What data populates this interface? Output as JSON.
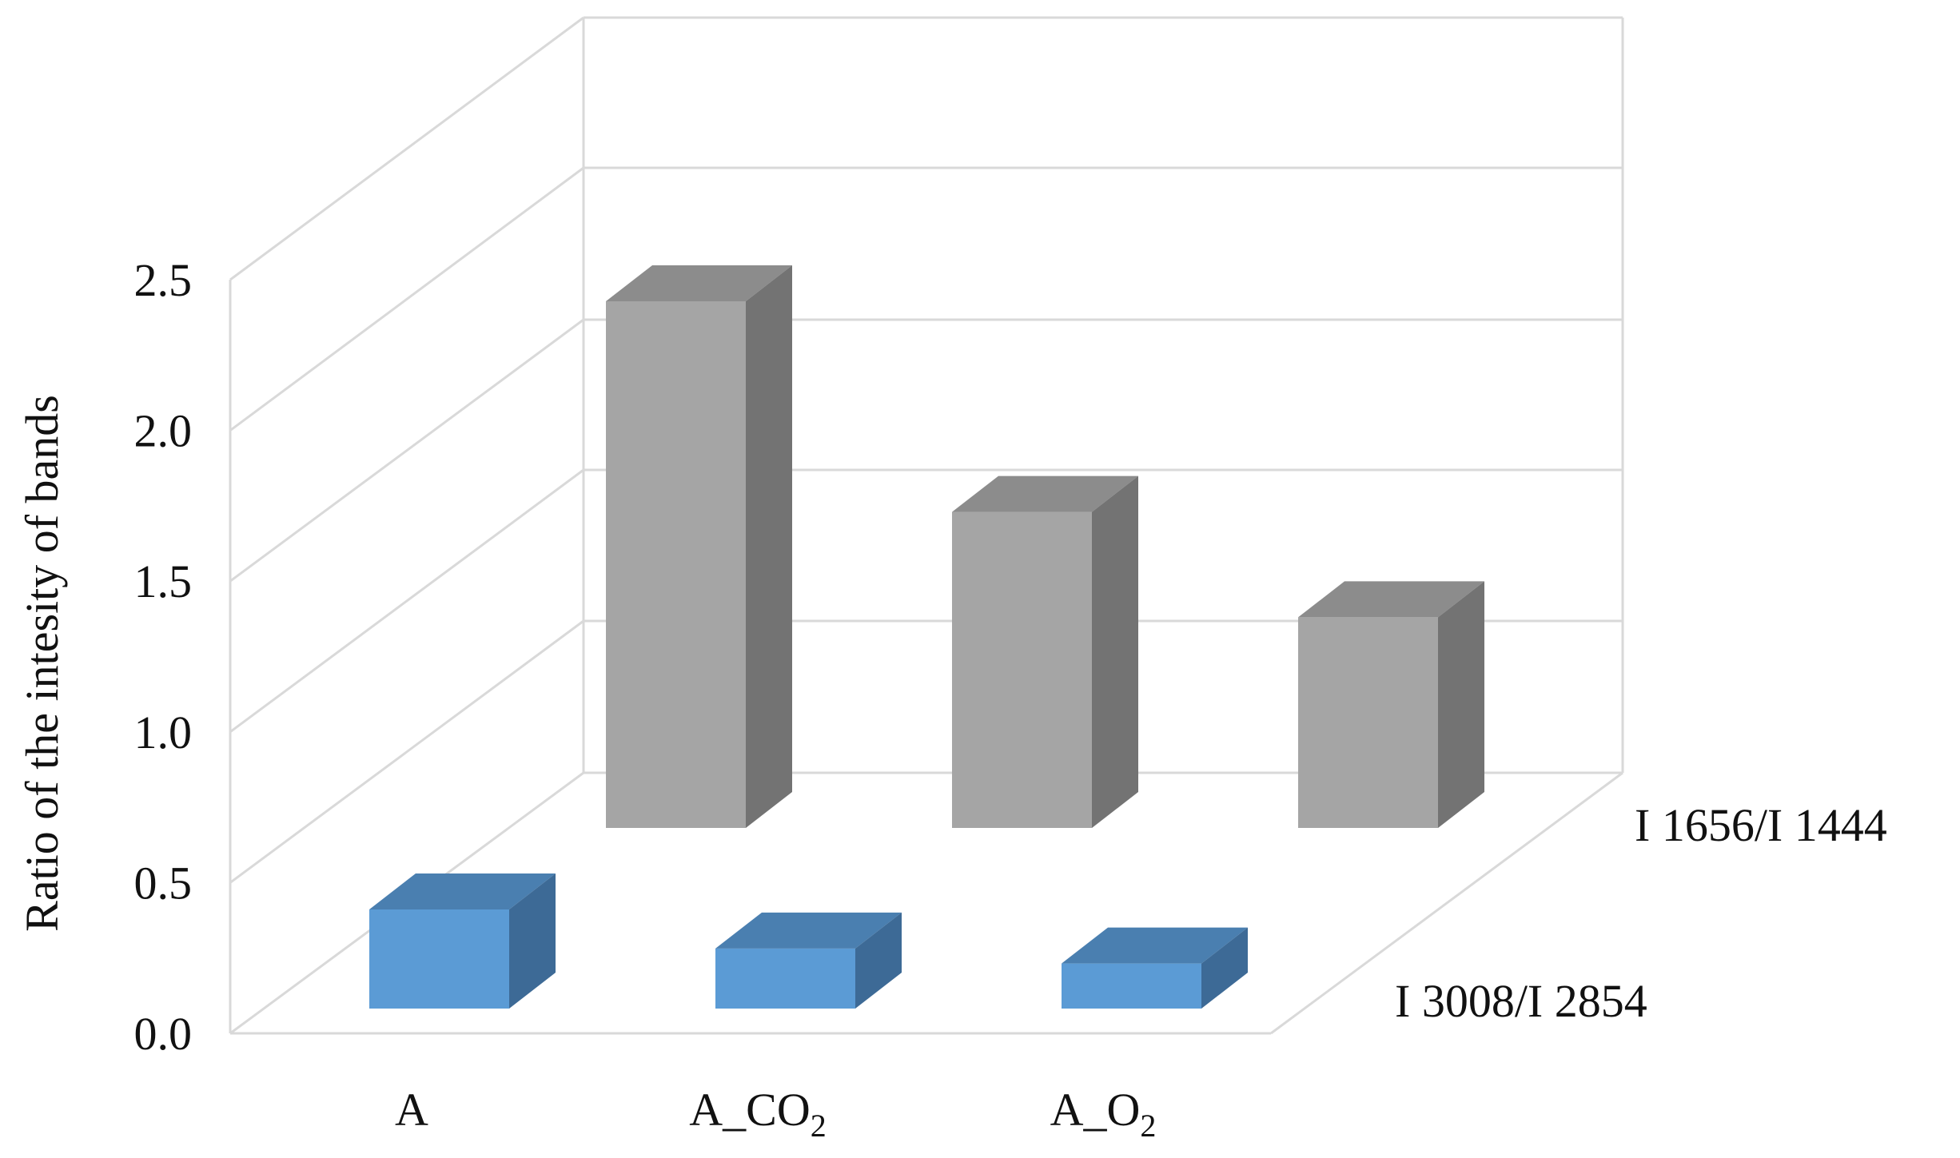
{
  "chart_data": {
    "type": "bar",
    "subtype": "3d-column",
    "title": "",
    "ylabel": "Ratio of the intesity of bands",
    "ylim": [
      0,
      2.5
    ],
    "yticks": [
      "0.0",
      "0.5",
      "1.0",
      "1.5",
      "2.0",
      "2.5"
    ],
    "categories": [
      {
        "base": "A",
        "sub": ""
      },
      {
        "base": "A_CO",
        "sub": "2"
      },
      {
        "base": "A_O",
        "sub": "2"
      }
    ],
    "series": [
      {
        "name": "I 3008/I 2854",
        "values": [
          0.33,
          0.2,
          0.15
        ],
        "color": "#5b9bd5",
        "top_color": "#4a7fb0",
        "side_color": "#3d6a96"
      },
      {
        "name": "I 1656/I 1444",
        "values": [
          1.75,
          1.05,
          0.7
        ],
        "color": "#a5a5a5",
        "top_color": "#8c8c8c",
        "side_color": "#737373"
      }
    ],
    "grid": true,
    "legend": "series labels on right depth axis"
  }
}
